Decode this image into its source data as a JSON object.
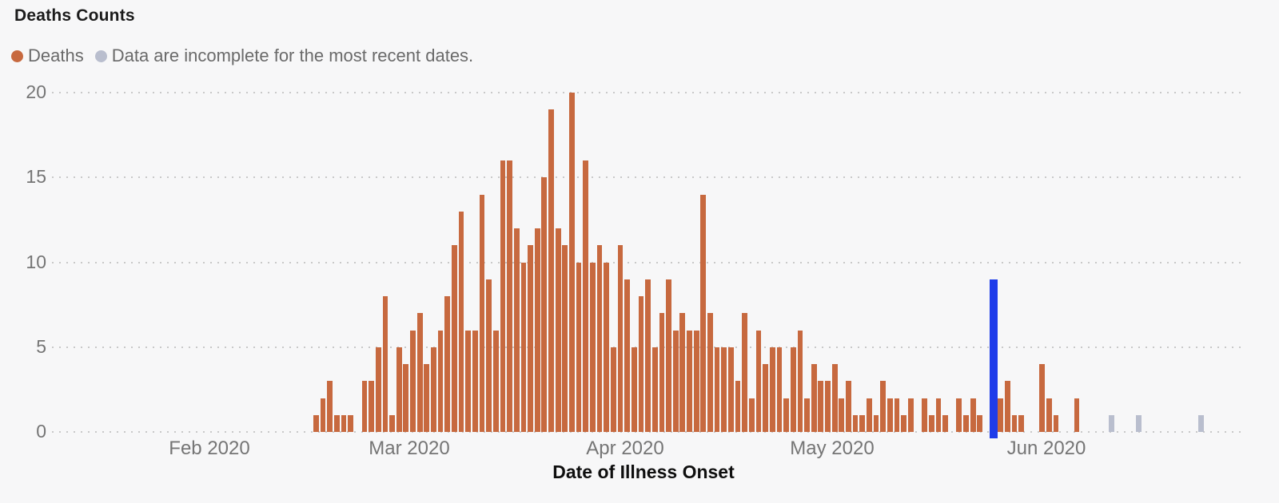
{
  "title": "Deaths Counts",
  "legend": {
    "items": [
      {
        "label": "Deaths",
        "color": "#c7693f"
      },
      {
        "label": "Data are incomplete for the most recent dates.",
        "color": "#b9bece"
      }
    ]
  },
  "x_axis_title": "Date of Illness Onset",
  "chart_data": {
    "type": "bar",
    "title": "Deaths Counts",
    "xlabel": "Date of Illness Onset",
    "ylabel": "",
    "ylim": [
      0,
      20
    ],
    "yticks": [
      0,
      5,
      10,
      15,
      20
    ],
    "x_tick_labels": [
      "Feb 2020",
      "Mar 2020",
      "Apr 2020",
      "May 2020",
      "Jun 2020"
    ],
    "grid": "horizontal dotted gridlines on",
    "legend_position": "top-left",
    "values": [
      1,
      2,
      3,
      1,
      1,
      1,
      0,
      3,
      3,
      5,
      8,
      1,
      5,
      4,
      6,
      7,
      4,
      5,
      6,
      8,
      11,
      13,
      6,
      6,
      14,
      9,
      6,
      16,
      16,
      12,
      10,
      11,
      12,
      15,
      19,
      12,
      11,
      20,
      10,
      16,
      10,
      11,
      10,
      5,
      11,
      9,
      5,
      8,
      9,
      5,
      7,
      9,
      6,
      7,
      6,
      6,
      14,
      7,
      5,
      5,
      5,
      3,
      7,
      2,
      6,
      4,
      5,
      5,
      2,
      5,
      6,
      2,
      4,
      3,
      3,
      4,
      2,
      3,
      1,
      1,
      2,
      1,
      3,
      2,
      2,
      1,
      2,
      0,
      2,
      1,
      2,
      1,
      0,
      2,
      1,
      2,
      1,
      0,
      9,
      2,
      3,
      1,
      1,
      0,
      0,
      4,
      2,
      1,
      0,
      0,
      2,
      0,
      0,
      0,
      0,
      1,
      0,
      0,
      0,
      1,
      0,
      0,
      0,
      0,
      0,
      0,
      0,
      0,
      1,
      0
    ],
    "special_bars": {
      "default_color": "#c7693f",
      "blue_index": 98,
      "blue_value": 9,
      "blue_color": "#1e3cea",
      "gray_indices": [
        115,
        119,
        128
      ],
      "gray_color": "#b9bece",
      "gray_meaning": "Data are incomplete for the most recent dates."
    }
  },
  "colors": {
    "background": "#f7f7f8",
    "gridline": "#c9c9c9",
    "axis_text": "#757575",
    "title_text": "#1b1b1b"
  }
}
